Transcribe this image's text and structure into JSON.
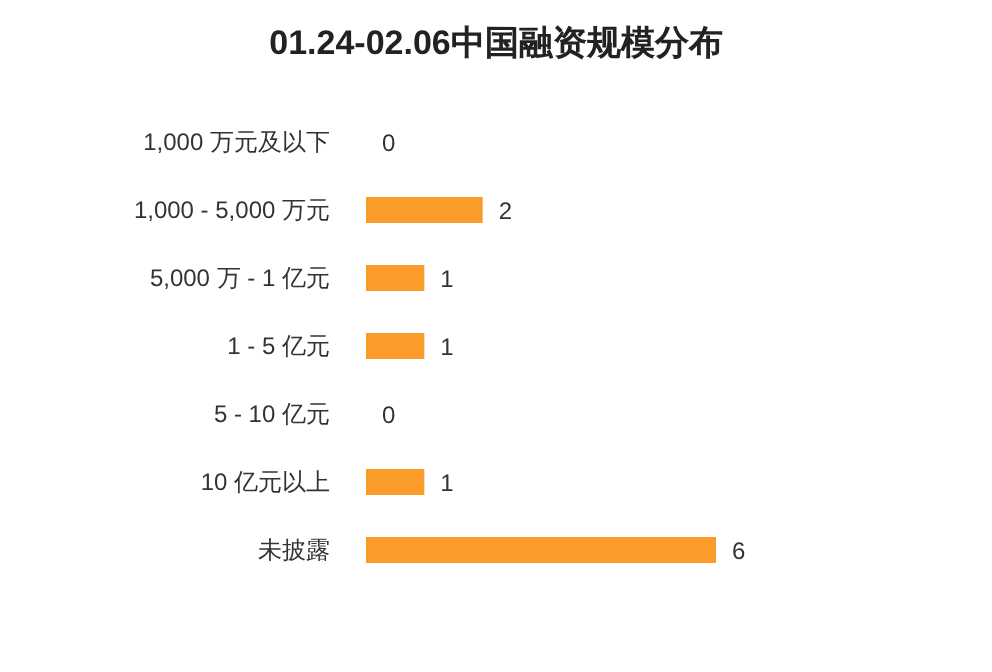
{
  "chart_data": {
    "type": "bar",
    "orientation": "horizontal",
    "title": "01.24-02.06中国融资规模分布",
    "categories": [
      "1,000 万元及以下",
      "1,000 - 5,000 万元",
      "5,000 万 - 1 亿元",
      "1 - 5 亿元",
      "5 - 10 亿元",
      "10 亿元以上",
      "未披露"
    ],
    "values": [
      0,
      2,
      1,
      1,
      0,
      1,
      6
    ],
    "color": "#fb9b2a",
    "data_labels": true
  }
}
